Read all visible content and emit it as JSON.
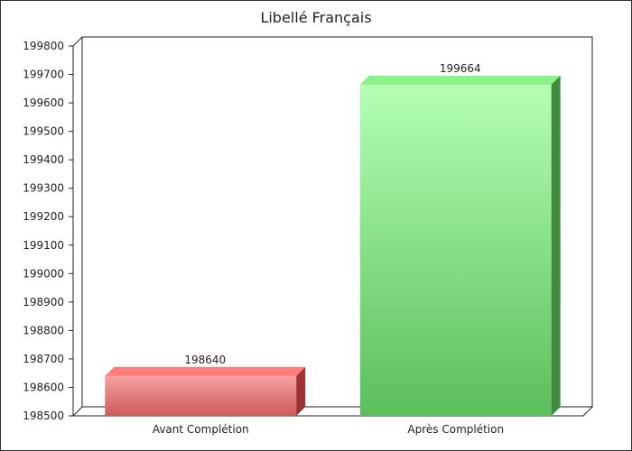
{
  "chart_data": {
    "type": "bar",
    "title": "Libellé Français",
    "xlabel": "",
    "ylabel": "",
    "categories": [
      "Avant Complétion",
      "Après Complétion"
    ],
    "values": [
      198640,
      199664
    ],
    "ylim": [
      198500,
      199800
    ],
    "yticks": [
      198500,
      198600,
      198700,
      198800,
      198900,
      199000,
      199100,
      199200,
      199300,
      199400,
      199500,
      199600,
      199700,
      199800
    ],
    "grid": false,
    "legend": "none",
    "bar_colors": [
      {
        "front_top": "#f7a1a1",
        "front_bottom": "#cc5a5a",
        "top": "#ff7c7c",
        "side": "#9b3333"
      },
      {
        "front_top": "#b4ffb4",
        "front_bottom": "#5cbe5c",
        "top": "#8af28a",
        "side": "#3f8c3f"
      }
    ]
  }
}
